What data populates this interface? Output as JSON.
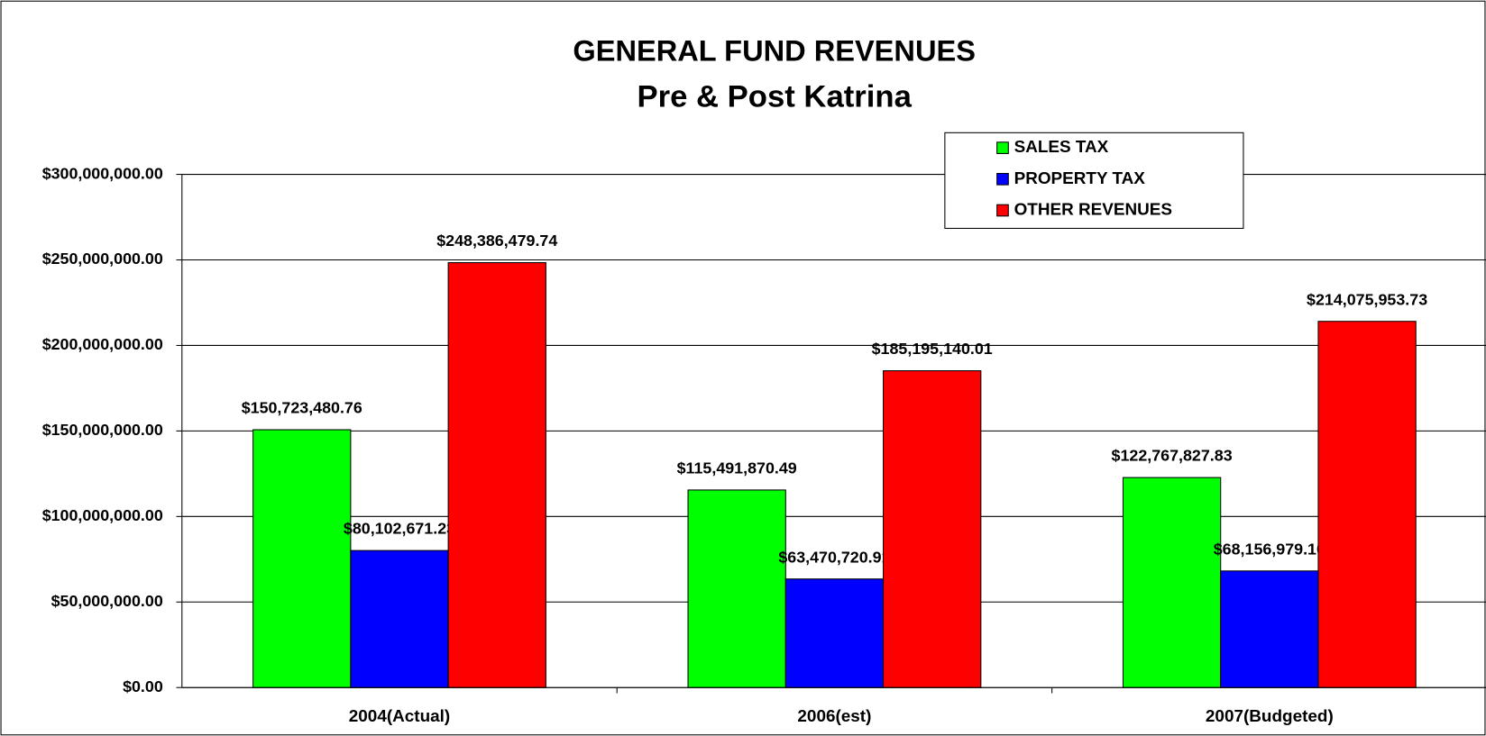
{
  "chart_data": {
    "type": "bar",
    "title": "GENERAL FUND REVENUES",
    "subtitle": "Pre & Post Katrina",
    "categories": [
      "2004(Actual)",
      "2006(est)",
      "2007(Budgeted)"
    ],
    "series": [
      {
        "name": "SALES TAX",
        "color": "#00ff00",
        "values": [
          150723480.76,
          115491870.49,
          122767827.83
        ],
        "value_labels": [
          "$150,723,480.76",
          "$115,491,870.49",
          "$122,767,827.83"
        ]
      },
      {
        "name": "PROPERTY TAX",
        "color": "#0000ff",
        "values": [
          80102671.23,
          63470720.91,
          68156979.1
        ],
        "value_labels": [
          "$80,102,671.23",
          "$63,470,720.91",
          "$68,156,979.10"
        ]
      },
      {
        "name": "OTHER REVENUES",
        "color": "#ff0000",
        "values": [
          248386479.74,
          185195140.01,
          214075953.73
        ],
        "value_labels": [
          "$248,386,479.74",
          "$185,195,140.01",
          "$214,075,953.73"
        ]
      }
    ],
    "ylim": [
      0,
      300000000
    ],
    "yticks": [
      {
        "value": 0,
        "label": "$0.00"
      },
      {
        "value": 50000000,
        "label": "$50,000,000.00"
      },
      {
        "value": 100000000,
        "label": "$100,000,000.00"
      },
      {
        "value": 150000000,
        "label": "$150,000,000.00"
      },
      {
        "value": 200000000,
        "label": "$200,000,000.00"
      },
      {
        "value": 250000000,
        "label": "$250,000,000.00"
      },
      {
        "value": 300000000,
        "label": "$300,000,000.00"
      }
    ],
    "grid": true,
    "legend": "top-right"
  }
}
